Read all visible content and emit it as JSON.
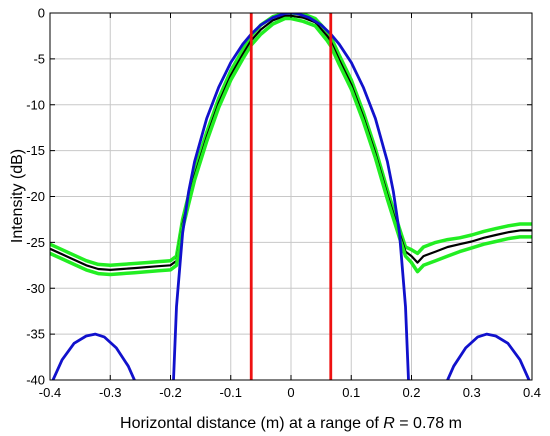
{
  "chart_data": {
    "type": "line",
    "title": "",
    "xlabel": "Horizontal distance (m) at a range of R = 0.78 m",
    "xlabel_parts": {
      "prefix": "Horizontal distance (m) at a range of ",
      "variable": "R",
      "suffix": " = 0.78 m"
    },
    "ylabel": "Intensity (dB)",
    "xlim": [
      -0.4,
      0.4
    ],
    "ylim": [
      -40,
      0
    ],
    "xticks": [
      -0.4,
      -0.3,
      -0.2,
      -0.1,
      0,
      0.1,
      0.2,
      0.3,
      0.4
    ],
    "xtick_labels": [
      "-0.4",
      "-0.3",
      "-0.2",
      "-0.1",
      "0",
      "0.1",
      "0.2",
      "0.3",
      "0.4"
    ],
    "yticks": [
      0,
      -5,
      -10,
      -15,
      -20,
      -25,
      -30,
      -35,
      -40
    ],
    "ytick_labels": [
      "0",
      "-5",
      "-10",
      "-15",
      "-20",
      "-25",
      "-30",
      "-35",
      "-40"
    ],
    "grid": true,
    "vertical_lines": {
      "x": [
        -0.066,
        0.066
      ],
      "color": "#ee1111"
    },
    "series": [
      {
        "role": "measured-upper",
        "color": "#22ee22",
        "points": [
          [
            -0.4,
            -25.2
          ],
          [
            -0.38,
            -25.8
          ],
          [
            -0.36,
            -26.4
          ],
          [
            -0.34,
            -27.0
          ],
          [
            -0.32,
            -27.4
          ],
          [
            -0.3,
            -27.5
          ],
          [
            -0.28,
            -27.4
          ],
          [
            -0.26,
            -27.3
          ],
          [
            -0.24,
            -27.2
          ],
          [
            -0.22,
            -27.1
          ],
          [
            -0.2,
            -27.0
          ],
          [
            -0.19,
            -26.5
          ],
          [
            -0.18,
            -22.5
          ],
          [
            -0.16,
            -17.2
          ],
          [
            -0.14,
            -13.0
          ],
          [
            -0.12,
            -9.3
          ],
          [
            -0.1,
            -6.3
          ],
          [
            -0.08,
            -4.0
          ],
          [
            -0.066,
            -2.5
          ],
          [
            -0.05,
            -1.3
          ],
          [
            -0.03,
            -0.4
          ],
          [
            -0.01,
            0.0
          ],
          [
            0.0,
            0.0
          ],
          [
            0.02,
            -0.1
          ],
          [
            0.04,
            -0.6
          ],
          [
            0.06,
            -2.0
          ],
          [
            0.066,
            -2.6
          ],
          [
            0.08,
            -4.6
          ],
          [
            0.1,
            -7.3
          ],
          [
            0.12,
            -10.8
          ],
          [
            0.14,
            -14.8
          ],
          [
            0.16,
            -19.3
          ],
          [
            0.18,
            -23.5
          ],
          [
            0.19,
            -25.5
          ],
          [
            0.2,
            -25.8
          ],
          [
            0.21,
            -26.2
          ],
          [
            0.22,
            -25.5
          ],
          [
            0.24,
            -25.0
          ],
          [
            0.26,
            -24.7
          ],
          [
            0.28,
            -24.5
          ],
          [
            0.3,
            -24.2
          ],
          [
            0.32,
            -23.8
          ],
          [
            0.34,
            -23.5
          ],
          [
            0.36,
            -23.2
          ],
          [
            0.38,
            -23.0
          ],
          [
            0.4,
            -23.0
          ]
        ]
      },
      {
        "role": "measured-mean",
        "color": "#000000",
        "points": [
          [
            -0.4,
            -25.7
          ],
          [
            -0.38,
            -26.3
          ],
          [
            -0.36,
            -26.9
          ],
          [
            -0.34,
            -27.5
          ],
          [
            -0.32,
            -27.9
          ],
          [
            -0.3,
            -28.0
          ],
          [
            -0.28,
            -27.9
          ],
          [
            -0.26,
            -27.8
          ],
          [
            -0.24,
            -27.7
          ],
          [
            -0.22,
            -27.6
          ],
          [
            -0.2,
            -27.5
          ],
          [
            -0.19,
            -27.0
          ],
          [
            -0.18,
            -23.0
          ],
          [
            -0.16,
            -17.7
          ],
          [
            -0.14,
            -13.5
          ],
          [
            -0.12,
            -9.8
          ],
          [
            -0.1,
            -6.8
          ],
          [
            -0.08,
            -4.5
          ],
          [
            -0.066,
            -3.0
          ],
          [
            -0.05,
            -1.8
          ],
          [
            -0.03,
            -0.8
          ],
          [
            -0.01,
            -0.3
          ],
          [
            0.0,
            -0.3
          ],
          [
            0.02,
            -0.5
          ],
          [
            0.04,
            -1.0
          ],
          [
            0.06,
            -2.5
          ],
          [
            0.066,
            -3.1
          ],
          [
            0.08,
            -5.1
          ],
          [
            0.1,
            -7.8
          ],
          [
            0.12,
            -11.3
          ],
          [
            0.14,
            -15.3
          ],
          [
            0.16,
            -19.8
          ],
          [
            0.18,
            -24.0
          ],
          [
            0.19,
            -26.0
          ],
          [
            0.2,
            -26.5
          ],
          [
            0.21,
            -27.2
          ],
          [
            0.22,
            -26.5
          ],
          [
            0.24,
            -26.0
          ],
          [
            0.26,
            -25.5
          ],
          [
            0.28,
            -25.2
          ],
          [
            0.3,
            -24.9
          ],
          [
            0.32,
            -24.5
          ],
          [
            0.34,
            -24.2
          ],
          [
            0.36,
            -23.9
          ],
          [
            0.38,
            -23.7
          ],
          [
            0.4,
            -23.7
          ]
        ]
      },
      {
        "role": "measured-lower",
        "color": "#22ee22",
        "points": [
          [
            -0.4,
            -26.2
          ],
          [
            -0.38,
            -26.8
          ],
          [
            -0.36,
            -27.4
          ],
          [
            -0.34,
            -28.0
          ],
          [
            -0.32,
            -28.4
          ],
          [
            -0.3,
            -28.5
          ],
          [
            -0.28,
            -28.4
          ],
          [
            -0.26,
            -28.3
          ],
          [
            -0.24,
            -28.2
          ],
          [
            -0.22,
            -28.1
          ],
          [
            -0.2,
            -28.0
          ],
          [
            -0.19,
            -27.5
          ],
          [
            -0.18,
            -23.5
          ],
          [
            -0.16,
            -18.2
          ],
          [
            -0.14,
            -14.0
          ],
          [
            -0.12,
            -10.3
          ],
          [
            -0.1,
            -7.3
          ],
          [
            -0.08,
            -5.0
          ],
          [
            -0.066,
            -3.5
          ],
          [
            -0.05,
            -2.3
          ],
          [
            -0.03,
            -1.2
          ],
          [
            -0.01,
            -0.6
          ],
          [
            0.0,
            -0.6
          ],
          [
            0.02,
            -0.9
          ],
          [
            0.04,
            -1.4
          ],
          [
            0.06,
            -3.0
          ],
          [
            0.066,
            -3.6
          ],
          [
            0.08,
            -5.6
          ],
          [
            0.1,
            -8.3
          ],
          [
            0.12,
            -11.8
          ],
          [
            0.14,
            -15.8
          ],
          [
            0.16,
            -20.3
          ],
          [
            0.18,
            -24.5
          ],
          [
            0.19,
            -26.5
          ],
          [
            0.2,
            -27.2
          ],
          [
            0.21,
            -28.2
          ],
          [
            0.22,
            -27.5
          ],
          [
            0.24,
            -27.0
          ],
          [
            0.26,
            -26.5
          ],
          [
            0.28,
            -26.0
          ],
          [
            0.3,
            -25.6
          ],
          [
            0.32,
            -25.2
          ],
          [
            0.34,
            -24.9
          ],
          [
            0.36,
            -24.6
          ],
          [
            0.38,
            -24.4
          ],
          [
            0.4,
            -24.4
          ]
        ]
      },
      {
        "role": "theoretical-main-lobe",
        "color": "#1111cc",
        "points": [
          [
            -0.195,
            -40.0
          ],
          [
            -0.19,
            -32.0
          ],
          [
            -0.18,
            -24.0
          ],
          [
            -0.17,
            -19.5
          ],
          [
            -0.16,
            -16.2
          ],
          [
            -0.14,
            -11.5
          ],
          [
            -0.12,
            -8.1
          ],
          [
            -0.1,
            -5.4
          ],
          [
            -0.08,
            -3.4
          ],
          [
            -0.066,
            -2.3
          ],
          [
            -0.05,
            -1.3
          ],
          [
            -0.03,
            -0.5
          ],
          [
            -0.01,
            -0.05
          ],
          [
            0.0,
            0.0
          ],
          [
            0.01,
            -0.05
          ],
          [
            0.03,
            -0.5
          ],
          [
            0.05,
            -1.3
          ],
          [
            0.066,
            -2.3
          ],
          [
            0.08,
            -3.4
          ],
          [
            0.1,
            -5.4
          ],
          [
            0.12,
            -8.1
          ],
          [
            0.14,
            -11.5
          ],
          [
            0.16,
            -16.2
          ],
          [
            0.17,
            -19.5
          ],
          [
            0.18,
            -24.0
          ],
          [
            0.19,
            -32.0
          ],
          [
            0.195,
            -40.0
          ]
        ]
      },
      {
        "role": "theoretical-left-side-lobe",
        "color": "#1111cc",
        "points": [
          [
            -0.395,
            -40.0
          ],
          [
            -0.38,
            -37.8
          ],
          [
            -0.36,
            -36.0
          ],
          [
            -0.34,
            -35.2
          ],
          [
            -0.325,
            -35.0
          ],
          [
            -0.31,
            -35.3
          ],
          [
            -0.29,
            -36.5
          ],
          [
            -0.27,
            -38.5
          ],
          [
            -0.26,
            -40.0
          ]
        ]
      },
      {
        "role": "theoretical-right-side-lobe",
        "color": "#1111cc",
        "points": [
          [
            0.26,
            -40.0
          ],
          [
            0.27,
            -38.5
          ],
          [
            0.29,
            -36.5
          ],
          [
            0.31,
            -35.3
          ],
          [
            0.325,
            -35.0
          ],
          [
            0.34,
            -35.2
          ],
          [
            0.36,
            -36.0
          ],
          [
            0.38,
            -37.8
          ],
          [
            0.395,
            -40.0
          ]
        ]
      }
    ]
  }
}
